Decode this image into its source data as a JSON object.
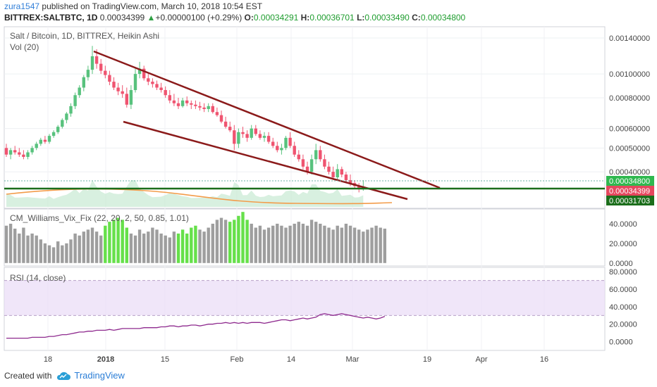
{
  "header": {
    "author": "zura1547",
    "published_text": "published on TradingView.com, March 10, 2018 10:54 EST",
    "symbol": "BITTREX:SALTBTC, 1D",
    "last": "0.00034399",
    "change_arrow": "▲",
    "change": "+0.00000100 (+0.29%)",
    "o_label": "O:",
    "o_value": "0.00034291",
    "h_label": "H:",
    "h_value": "0.00036701",
    "l_label": "L:",
    "l_value": "0.00033490",
    "c_label": "C:",
    "c_value": "0.00034800"
  },
  "panels": {
    "main_title": "Salt / Bitcoin, 1D, BITTREX, Heikin Ashi",
    "vol_label": "Vol (20)",
    "vix_label": "CM_Williams_Vix_Fix (22, 20, 2, 50, 0.85, 1.01)",
    "rsi_label": "RSI (14, close)"
  },
  "price_badges": {
    "close": "0.00034800",
    "last": "0.00034399",
    "support": "0.00031703"
  },
  "footer": {
    "created_with": "Created with",
    "brand": "TradingView"
  },
  "colors": {
    "up": "#58c27d",
    "down": "#ef5470",
    "trendline": "#8b1a1a",
    "support": "#1b6e1b",
    "rsi": "#8e2a8e",
    "vix_gray": "#9e9e9e",
    "vix_green": "#66e04a",
    "badge_close": "#2fb84f",
    "badge_last": "#e5475f",
    "badge_support": "#1b6e1b"
  },
  "chart_data": [
    {
      "type": "candlestick",
      "title": "Salt / Bitcoin, 1D, BITTREX, Heikin Ashi",
      "scale": "log",
      "y_ticks": [
        "0.00140000",
        "0.00100000",
        "0.00080000",
        "0.00060000",
        "0.00050000",
        "0.00040000"
      ],
      "x_ticks": [
        "18",
        "2018",
        "15",
        "Feb",
        "14",
        "Mar",
        "19",
        "Apr",
        "16"
      ],
      "candles": [
        {
          "o": 0.0005,
          "h": 0.00052,
          "l": 0.00046,
          "c": 0.00047
        },
        {
          "o": 0.00047,
          "h": 0.0005,
          "l": 0.00045,
          "c": 0.00049
        },
        {
          "o": 0.00049,
          "h": 0.00051,
          "l": 0.00047,
          "c": 0.00048
        },
        {
          "o": 0.00048,
          "h": 0.0005,
          "l": 0.00046,
          "c": 0.00047
        },
        {
          "o": 0.00047,
          "h": 0.00049,
          "l": 0.00045,
          "c": 0.00046
        },
        {
          "o": 0.00046,
          "h": 0.00049,
          "l": 0.00045,
          "c": 0.00048
        },
        {
          "o": 0.00048,
          "h": 0.00051,
          "l": 0.00047,
          "c": 0.0005
        },
        {
          "o": 0.0005,
          "h": 0.00053,
          "l": 0.00049,
          "c": 0.00052
        },
        {
          "o": 0.00052,
          "h": 0.00055,
          "l": 0.00051,
          "c": 0.00054
        },
        {
          "o": 0.00054,
          "h": 0.00056,
          "l": 0.00052,
          "c": 0.00053
        },
        {
          "o": 0.00053,
          "h": 0.00057,
          "l": 0.00052,
          "c": 0.00056
        },
        {
          "o": 0.00056,
          "h": 0.00059,
          "l": 0.00055,
          "c": 0.00058
        },
        {
          "o": 0.00058,
          "h": 0.00062,
          "l": 0.00057,
          "c": 0.00061
        },
        {
          "o": 0.00061,
          "h": 0.00066,
          "l": 0.0006,
          "c": 0.00065
        },
        {
          "o": 0.00065,
          "h": 0.0007,
          "l": 0.00063,
          "c": 0.00069
        },
        {
          "o": 0.00069,
          "h": 0.00076,
          "l": 0.00067,
          "c": 0.00074
        },
        {
          "o": 0.00074,
          "h": 0.00084,
          "l": 0.00072,
          "c": 0.00082
        },
        {
          "o": 0.00082,
          "h": 0.0009,
          "l": 0.0008,
          "c": 0.00088
        },
        {
          "o": 0.00088,
          "h": 0.00099,
          "l": 0.00085,
          "c": 0.00097
        },
        {
          "o": 0.00097,
          "h": 0.00108,
          "l": 0.00094,
          "c": 0.00104
        },
        {
          "o": 0.00104,
          "h": 0.0013,
          "l": 0.001,
          "c": 0.00118
        },
        {
          "o": 0.00118,
          "h": 0.00126,
          "l": 0.00105,
          "c": 0.0011
        },
        {
          "o": 0.0011,
          "h": 0.00115,
          "l": 0.001,
          "c": 0.00103
        },
        {
          "o": 0.00103,
          "h": 0.00108,
          "l": 0.00096,
          "c": 0.00099
        },
        {
          "o": 0.00099,
          "h": 0.00103,
          "l": 0.0009,
          "c": 0.00093
        },
        {
          "o": 0.00093,
          "h": 0.00097,
          "l": 0.00086,
          "c": 0.00088
        },
        {
          "o": 0.00088,
          "h": 0.00092,
          "l": 0.00082,
          "c": 0.00085
        },
        {
          "o": 0.00085,
          "h": 0.0009,
          "l": 0.0008,
          "c": 0.00083
        },
        {
          "o": 0.00083,
          "h": 0.00088,
          "l": 0.00073,
          "c": 0.00075
        },
        {
          "o": 0.00075,
          "h": 0.0009,
          "l": 0.00072,
          "c": 0.00086
        },
        {
          "o": 0.00086,
          "h": 0.00105,
          "l": 0.00084,
          "c": 0.001
        },
        {
          "o": 0.001,
          "h": 0.00112,
          "l": 0.00096,
          "c": 0.00105
        },
        {
          "o": 0.00105,
          "h": 0.00108,
          "l": 0.00094,
          "c": 0.00096
        },
        {
          "o": 0.00096,
          "h": 0.001,
          "l": 0.0009,
          "c": 0.00093
        },
        {
          "o": 0.00093,
          "h": 0.00096,
          "l": 0.00088,
          "c": 0.00091
        },
        {
          "o": 0.00091,
          "h": 0.00094,
          "l": 0.00086,
          "c": 0.00088
        },
        {
          "o": 0.00088,
          "h": 0.00092,
          "l": 0.00084,
          "c": 0.00086
        },
        {
          "o": 0.00086,
          "h": 0.00089,
          "l": 0.0008,
          "c": 0.00082
        },
        {
          "o": 0.00082,
          "h": 0.00086,
          "l": 0.00076,
          "c": 0.00078
        },
        {
          "o": 0.00078,
          "h": 0.00083,
          "l": 0.00074,
          "c": 0.00076
        },
        {
          "o": 0.00076,
          "h": 0.0008,
          "l": 0.00072,
          "c": 0.00074
        },
        {
          "o": 0.00074,
          "h": 0.0008,
          "l": 0.00073,
          "c": 0.00078
        },
        {
          "o": 0.00078,
          "h": 0.00081,
          "l": 0.00074,
          "c": 0.00076
        },
        {
          "o": 0.00076,
          "h": 0.00078,
          "l": 0.00072,
          "c": 0.00075
        },
        {
          "o": 0.00075,
          "h": 0.00078,
          "l": 0.00072,
          "c": 0.00074
        },
        {
          "o": 0.00074,
          "h": 0.00077,
          "l": 0.00071,
          "c": 0.00073
        },
        {
          "o": 0.00073,
          "h": 0.00076,
          "l": 0.0007,
          "c": 0.00072
        },
        {
          "o": 0.00072,
          "h": 0.00076,
          "l": 0.0007,
          "c": 0.00074
        },
        {
          "o": 0.00074,
          "h": 0.00076,
          "l": 0.00069,
          "c": 0.0007
        },
        {
          "o": 0.0007,
          "h": 0.00073,
          "l": 0.00067,
          "c": 0.00068
        },
        {
          "o": 0.00068,
          "h": 0.00071,
          "l": 0.00063,
          "c": 0.00064
        },
        {
          "o": 0.00064,
          "h": 0.00067,
          "l": 0.0006,
          "c": 0.00061
        },
        {
          "o": 0.00061,
          "h": 0.00064,
          "l": 0.00058,
          "c": 0.00059
        },
        {
          "o": 0.00059,
          "h": 0.00062,
          "l": 0.00049,
          "c": 0.00052
        },
        {
          "o": 0.00052,
          "h": 0.0006,
          "l": 0.0005,
          "c": 0.00058
        },
        {
          "o": 0.00058,
          "h": 0.00061,
          "l": 0.00055,
          "c": 0.00057
        },
        {
          "o": 0.00057,
          "h": 0.00059,
          "l": 0.00053,
          "c": 0.00055
        },
        {
          "o": 0.00055,
          "h": 0.00062,
          "l": 0.00054,
          "c": 0.0006
        },
        {
          "o": 0.0006,
          "h": 0.00062,
          "l": 0.00056,
          "c": 0.00057
        },
        {
          "o": 0.00057,
          "h": 0.00059,
          "l": 0.00054,
          "c": 0.00055
        },
        {
          "o": 0.00055,
          "h": 0.00058,
          "l": 0.00053,
          "c": 0.00056
        },
        {
          "o": 0.00056,
          "h": 0.00058,
          "l": 0.00052,
          "c": 0.00053
        },
        {
          "o": 0.00053,
          "h": 0.00055,
          "l": 0.0005,
          "c": 0.00051
        },
        {
          "o": 0.00051,
          "h": 0.00053,
          "l": 0.00048,
          "c": 0.00049
        },
        {
          "o": 0.00049,
          "h": 0.00052,
          "l": 0.00047,
          "c": 0.0005
        },
        {
          "o": 0.0005,
          "h": 0.00056,
          "l": 0.00049,
          "c": 0.00055
        },
        {
          "o": 0.00055,
          "h": 0.00058,
          "l": 0.0005,
          "c": 0.00051
        },
        {
          "o": 0.00051,
          "h": 0.00053,
          "l": 0.00046,
          "c": 0.00047
        },
        {
          "o": 0.00047,
          "h": 0.00049,
          "l": 0.00044,
          "c": 0.00045
        },
        {
          "o": 0.00045,
          "h": 0.00047,
          "l": 0.00041,
          "c": 0.00042
        },
        {
          "o": 0.00042,
          "h": 0.00044,
          "l": 0.00039,
          "c": 0.0004
        },
        {
          "o": 0.0004,
          "h": 0.00047,
          "l": 0.00039,
          "c": 0.00045
        },
        {
          "o": 0.00045,
          "h": 0.00052,
          "l": 0.00043,
          "c": 0.00049
        },
        {
          "o": 0.00049,
          "h": 0.00051,
          "l": 0.00044,
          "c": 0.00045
        },
        {
          "o": 0.00045,
          "h": 0.00047,
          "l": 0.00041,
          "c": 0.00042
        },
        {
          "o": 0.00042,
          "h": 0.00044,
          "l": 0.00039,
          "c": 0.0004
        },
        {
          "o": 0.0004,
          "h": 0.00042,
          "l": 0.00037,
          "c": 0.00038
        },
        {
          "o": 0.00038,
          "h": 0.00043,
          "l": 0.00037,
          "c": 0.00041
        },
        {
          "o": 0.00041,
          "h": 0.00042,
          "l": 0.00038,
          "c": 0.00039
        },
        {
          "o": 0.00039,
          "h": 0.0004,
          "l": 0.00036,
          "c": 0.00037
        },
        {
          "o": 0.00037,
          "h": 0.00039,
          "l": 0.00035,
          "c": 0.00036
        },
        {
          "o": 0.00036,
          "h": 0.00037,
          "l": 0.00034,
          "c": 0.00035
        },
        {
          "o": 0.00035,
          "h": 0.00036,
          "l": 0.00033,
          "c": 0.00034
        },
        {
          "o": 0.00034,
          "h": 0.00037,
          "l": 0.000335,
          "c": 0.000348
        }
      ]
    },
    {
      "type": "bar",
      "title": "CM_Williams_Vix_Fix (22, 20, 2, 50, 0.85, 1.01)",
      "y_ticks": [
        "40.0000",
        "20.0000",
        "0.0000"
      ],
      "ylim": [
        -3,
        55
      ],
      "values": [
        38,
        40,
        35,
        30,
        36,
        28,
        30,
        28,
        24,
        20,
        18,
        16,
        22,
        18,
        20,
        24,
        30,
        28,
        32,
        34,
        36,
        32,
        28,
        38,
        42,
        44,
        46,
        44,
        36,
        30,
        28,
        34,
        30,
        32,
        36,
        34,
        30,
        28,
        26,
        32,
        30,
        34,
        30,
        36,
        38,
        34,
        32,
        36,
        40,
        44,
        46,
        44,
        42,
        44,
        48,
        52,
        44,
        40,
        36,
        38,
        34,
        36,
        38,
        40,
        38,
        36,
        38,
        40,
        42,
        40,
        38,
        44,
        42,
        40,
        38,
        36,
        34,
        38,
        36,
        40,
        38,
        36,
        34,
        32,
        34,
        36,
        38,
        36,
        35
      ],
      "highlight": [
        0,
        0,
        0,
        0,
        0,
        0,
        0,
        0,
        0,
        0,
        0,
        0,
        0,
        0,
        0,
        0,
        0,
        0,
        0,
        0,
        0,
        0,
        0,
        1,
        1,
        1,
        1,
        1,
        1,
        0,
        0,
        0,
        0,
        0,
        0,
        0,
        0,
        0,
        0,
        0,
        1,
        1,
        1,
        1,
        1,
        0,
        0,
        0,
        0,
        0,
        0,
        0,
        1,
        1,
        1,
        1,
        1,
        0,
        0,
        0,
        0,
        0,
        0,
        0,
        0,
        0,
        0,
        0,
        0,
        0,
        0,
        0,
        0,
        0,
        0,
        0,
        0,
        0,
        0,
        0,
        0,
        0,
        0,
        0,
        0,
        0,
        0,
        0,
        0
      ]
    },
    {
      "type": "line",
      "title": "RSI (14, close)",
      "y_ticks": [
        "80.0000",
        "60.0000",
        "40.0000",
        "20.0000",
        "0.0000"
      ],
      "ylim": [
        -10,
        85
      ],
      "band": [
        30,
        70
      ],
      "values": [
        4,
        4,
        4,
        4,
        4,
        4,
        5,
        5,
        5,
        5,
        6,
        6,
        7,
        8,
        8,
        9,
        10,
        11,
        11,
        12,
        12,
        13,
        13,
        13,
        14,
        13,
        14,
        15,
        15,
        15,
        15,
        15,
        16,
        16,
        16,
        16,
        17,
        17,
        18,
        18,
        17,
        18,
        18,
        19,
        19,
        18,
        19,
        20,
        20,
        21,
        21,
        22,
        21,
        22,
        21,
        22,
        21,
        22,
        22,
        22,
        21,
        22,
        23,
        24,
        25,
        25,
        24,
        25,
        26,
        27,
        26,
        27,
        28,
        31,
        32,
        31,
        30,
        31,
        32,
        31,
        30,
        29,
        28,
        27,
        28,
        27,
        26,
        27,
        29
      ]
    }
  ]
}
